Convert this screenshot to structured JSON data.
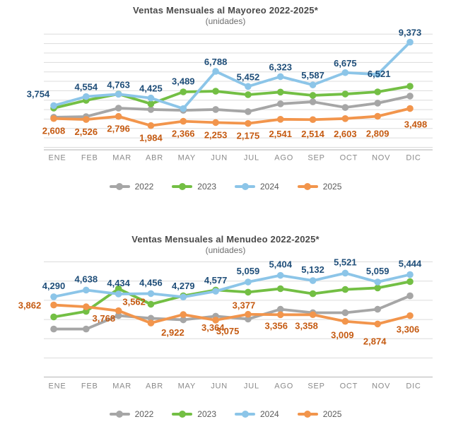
{
  "months": [
    "ENE",
    "FEB",
    "MAR",
    "ABR",
    "MAY",
    "JUN",
    "JUL",
    "AGO",
    "SEP",
    "OCT",
    "NOV",
    "DIC"
  ],
  "palette": {
    "gray": "#A6A6A6",
    "green": "#73BF44",
    "blue": "#8CC5E8",
    "orange": "#F2954C",
    "blue_label": "#1F4E79",
    "orange_label": "#C55A11",
    "gridline": "#DCDCDC",
    "axis_line": "#C0C0C0",
    "title_text": "#4a4a4a",
    "subtitle_text": "#6e6e6e",
    "month_text": "#8a8a8a",
    "legend_text": "#5a5a5a"
  },
  "charts": [
    {
      "title": "Ventas Mensuales al Mayoreo 2022-2025*",
      "subtitle": "(unidades)",
      "chart_data": {
        "type": "line",
        "categories": [
          "ENE",
          "FEB",
          "MAR",
          "ABR",
          "MAY",
          "JUN",
          "JUL",
          "AGO",
          "SEP",
          "OCT",
          "NOV",
          "DIC"
        ],
        "series": [
          {
            "name": "2022",
            "color": "#A6A6A6",
            "labels_shown": false,
            "values": [
              2720,
              2780,
              3530,
              3410,
              3340,
              3410,
              3220,
              3910,
              4090,
              3590,
              3970,
              4600
            ]
          },
          {
            "name": "2023",
            "color": "#73BF44",
            "labels_shown": false,
            "values": [
              3530,
              4220,
              4780,
              3910,
              4970,
              5030,
              4720,
              4950,
              4660,
              4780,
              4970,
              5470
            ]
          },
          {
            "name": "2024",
            "color": "#8CC5E8",
            "label_color": "#1F4E79",
            "labels_shown": true,
            "values": [
              3754,
              4554,
              4763,
              4425,
              3489,
              6788,
              5452,
              6323,
              5587,
              6675,
              6521,
              9373
            ]
          },
          {
            "name": "2025",
            "color": "#F2954C",
            "label_color": "#C55A11",
            "labels_shown": true,
            "values": [
              2608,
              2526,
              2796,
              1984,
              2366,
              2253,
              2175,
              2541,
              2514,
              2603,
              2809,
              3498
            ]
          }
        ],
        "title": "Ventas Mensuales al Mayoreo 2022-2025*",
        "subtitle": "(unidades)",
        "xlabel": "",
        "ylabel": "",
        "grid": true,
        "y_axis_tick_labels_visible": false,
        "legend_position": "bottom",
        "legend_entries": [
          "2022",
          "2023",
          "2024",
          "2025"
        ]
      }
    },
    {
      "title": "Ventas Mensuales al Menudeo 2022-2025*",
      "subtitle": "(unidades)",
      "chart_data": {
        "type": "line",
        "categories": [
          "ENE",
          "FEB",
          "MAR",
          "ABR",
          "MAY",
          "JUN",
          "JUL",
          "AGO",
          "SEP",
          "OCT",
          "NOV",
          "DIC"
        ],
        "series": [
          {
            "name": "2022",
            "color": "#A6A6A6",
            "labels_shown": false,
            "values": [
              2610,
              2610,
              3310,
              3170,
              3090,
              3280,
              3130,
              3640,
              3460,
              3460,
              3640,
              4340
            ]
          },
          {
            "name": "2023",
            "color": "#73BF44",
            "labels_shown": false,
            "values": [
              3240,
              3530,
              4710,
              3900,
              4340,
              4640,
              4530,
              4710,
              4450,
              4670,
              4750,
              5080
            ]
          },
          {
            "name": "2024",
            "color": "#8CC5E8",
            "label_color": "#1F4E79",
            "labels_shown": true,
            "values": [
              4290,
              4638,
              4434,
              4456,
              4279,
              4577,
              5059,
              5404,
              5132,
              5521,
              5059,
              5444
            ]
          },
          {
            "name": "2025",
            "color": "#F2954C",
            "label_color": "#C55A11",
            "labels_shown": true,
            "values": [
              3862,
              3768,
              3562,
              2922,
              3364,
              3075,
              3377,
              3356,
              3358,
              3009,
              2874,
              3306
            ]
          }
        ],
        "title": "Ventas Mensuales al Menudeo 2022-2025*",
        "subtitle": "(unidades)",
        "xlabel": "",
        "ylabel": "",
        "grid": true,
        "y_axis_tick_labels_visible": false,
        "legend_position": "bottom",
        "legend_entries": [
          "2022",
          "2023",
          "2024",
          "2025"
        ]
      }
    }
  ]
}
